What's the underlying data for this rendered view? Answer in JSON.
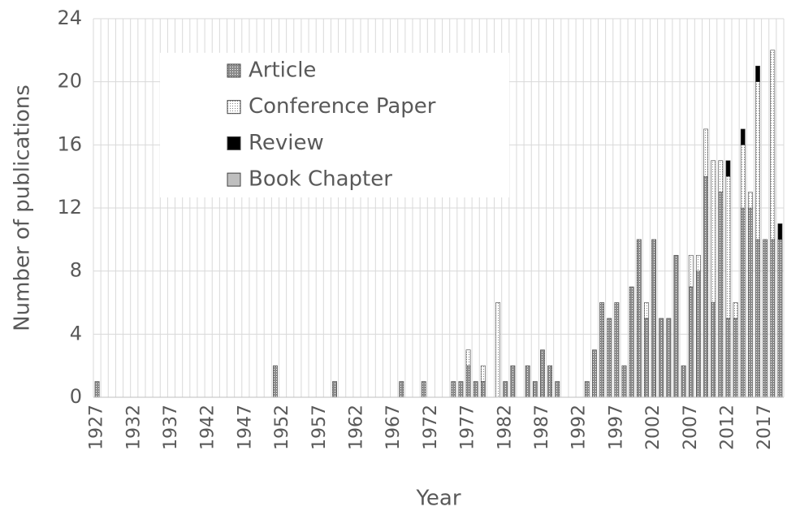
{
  "chart_data": {
    "type": "stacked_bar",
    "x_label": "Year",
    "y_label": "Number of publications",
    "categories": [
      "1927",
      null,
      null,
      null,
      null,
      "1932",
      null,
      null,
      null,
      null,
      "1937",
      null,
      null,
      null,
      null,
      "1942",
      null,
      null,
      null,
      null,
      "1947",
      null,
      null,
      null,
      null,
      "1952",
      null,
      null,
      null,
      null,
      "1957",
      null,
      null,
      null,
      null,
      "1962",
      null,
      null,
      null,
      null,
      "1967",
      null,
      null,
      null,
      null,
      "1972",
      null,
      null,
      null,
      null,
      "1977",
      null,
      null,
      null,
      null,
      "1982",
      null,
      null,
      null,
      null,
      "1987",
      null,
      null,
      null,
      null,
      "1992",
      null,
      null,
      null,
      null,
      "1997",
      null,
      null,
      null,
      null,
      "2002",
      null,
      null,
      null,
      null,
      "2007",
      null,
      null,
      null,
      null,
      "2012",
      null,
      null,
      null,
      null,
      "2017",
      null,
      null
    ],
    "series": [
      {
        "name": "Article",
        "color": "#a6a6a6",
        "pattern": "dots",
        "values": [
          1,
          0,
          0,
          0,
          0,
          0,
          0,
          0,
          0,
          0,
          0,
          0,
          0,
          0,
          0,
          0,
          0,
          0,
          0,
          0,
          0,
          0,
          0,
          0,
          2,
          0,
          0,
          0,
          0,
          0,
          0,
          0,
          1,
          0,
          0,
          0,
          0,
          0,
          0,
          0,
          0,
          1,
          0,
          0,
          1,
          0,
          0,
          0,
          1,
          1,
          2,
          1,
          1,
          0,
          0,
          1,
          2,
          0,
          2,
          1,
          3,
          2,
          1,
          0,
          0,
          0,
          1,
          3,
          6,
          5,
          6,
          2,
          7,
          10,
          5,
          10,
          5,
          5,
          9,
          2,
          7,
          8,
          14,
          6,
          13,
          5,
          5,
          12,
          12,
          10,
          10,
          10,
          10
        ]
      },
      {
        "name": "Conference Paper",
        "color": "#ffffff",
        "pattern": "dots",
        "values": [
          0,
          0,
          0,
          0,
          0,
          0,
          0,
          0,
          0,
          0,
          0,
          0,
          0,
          0,
          0,
          0,
          0,
          0,
          0,
          0,
          0,
          0,
          0,
          0,
          0,
          0,
          0,
          0,
          0,
          0,
          0,
          0,
          0,
          0,
          0,
          0,
          0,
          0,
          0,
          0,
          0,
          0,
          0,
          0,
          0,
          0,
          0,
          0,
          0,
          0,
          1,
          0,
          1,
          0,
          6,
          0,
          0,
          0,
          0,
          0,
          0,
          0,
          0,
          0,
          0,
          0,
          0,
          0,
          0,
          0,
          0,
          0,
          0,
          0,
          1,
          0,
          0,
          0,
          0,
          0,
          2,
          1,
          3,
          9,
          2,
          9,
          1,
          4,
          1,
          10,
          0,
          12,
          0
        ]
      },
      {
        "name": "Review",
        "color": "#000000",
        "values": [
          0,
          0,
          0,
          0,
          0,
          0,
          0,
          0,
          0,
          0,
          0,
          0,
          0,
          0,
          0,
          0,
          0,
          0,
          0,
          0,
          0,
          0,
          0,
          0,
          0,
          0,
          0,
          0,
          0,
          0,
          0,
          0,
          0,
          0,
          0,
          0,
          0,
          0,
          0,
          0,
          0,
          0,
          0,
          0,
          0,
          0,
          0,
          0,
          0,
          0,
          0,
          0,
          0,
          0,
          0,
          0,
          0,
          0,
          0,
          0,
          0,
          0,
          0,
          0,
          0,
          0,
          0,
          0,
          0,
          0,
          0,
          0,
          0,
          0,
          0,
          0,
          0,
          0,
          0,
          0,
          0,
          0,
          0,
          0,
          0,
          1,
          0,
          1,
          0,
          1,
          0,
          0,
          1
        ]
      },
      {
        "name": "Book Chapter",
        "color": "#bfbfbf",
        "values": [
          0,
          0,
          0,
          0,
          0,
          0,
          0,
          0,
          0,
          0,
          0,
          0,
          0,
          0,
          0,
          0,
          0,
          0,
          0,
          0,
          0,
          0,
          0,
          0,
          0,
          0,
          0,
          0,
          0,
          0,
          0,
          0,
          0,
          0,
          0,
          0,
          0,
          0,
          0,
          0,
          0,
          0,
          0,
          0,
          0,
          0,
          0,
          0,
          0,
          0,
          0,
          0,
          0,
          0,
          0,
          0,
          0,
          0,
          0,
          0,
          0,
          0,
          0,
          0,
          0,
          0,
          0,
          0,
          0,
          0,
          0,
          0,
          0,
          0,
          0,
          0,
          0,
          0,
          0,
          0,
          0,
          0,
          0,
          0,
          0,
          0,
          0,
          0,
          0,
          0,
          0,
          0,
          0
        ]
      }
    ],
    "ylim": [
      0,
      24
    ],
    "yticks": [
      0,
      4,
      8,
      12,
      16,
      20,
      24
    ],
    "grid": true,
    "legend": "top-left"
  }
}
